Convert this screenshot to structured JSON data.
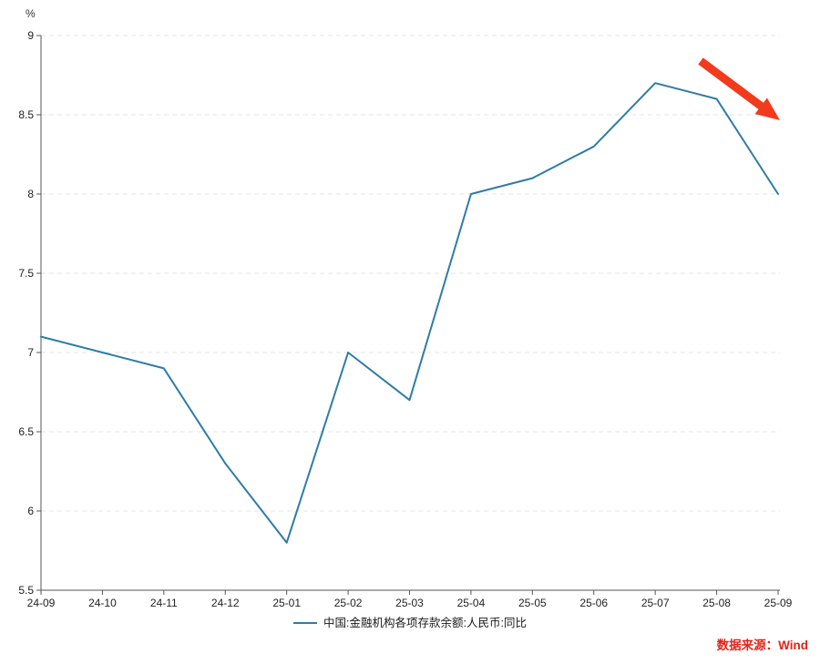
{
  "source_note": "数据来源：Wind",
  "chart_data": {
    "type": "line",
    "title": "",
    "xlabel": "",
    "ylabel": "%",
    "categories": [
      "24-09",
      "24-10",
      "24-11",
      "24-12",
      "25-01",
      "25-02",
      "25-03",
      "25-04",
      "25-05",
      "25-06",
      "25-07",
      "25-08",
      "25-09"
    ],
    "series": [
      {
        "name": "中国:金融机构各项存款余额:人民币:同比",
        "values": [
          7.1,
          7.0,
          6.9,
          6.3,
          5.8,
          7.0,
          6.7,
          8.0,
          8.1,
          8.3,
          8.7,
          8.6,
          8.0
        ],
        "color": "#2e7ca6"
      }
    ],
    "ylim": [
      5.5,
      9
    ],
    "yticks": [
      5.5,
      6,
      6.5,
      7,
      7.5,
      8,
      8.5,
      9
    ],
    "ytick_labels": [
      "5.5",
      "6",
      "6.5",
      "7",
      "7.5",
      "8",
      "8.5",
      "9"
    ],
    "grid": "horizontal-dashed",
    "legend_position": "bottom-center",
    "annotations": [
      {
        "type": "arrow",
        "color": "#f23a1d",
        "description": "thick red arrow pointing down-right over the final decline from 25-08 to 25-09"
      }
    ],
    "axis_color": "#555555",
    "gridline_color": "#e6e6e6",
    "tick_label_color": "#222222"
  }
}
